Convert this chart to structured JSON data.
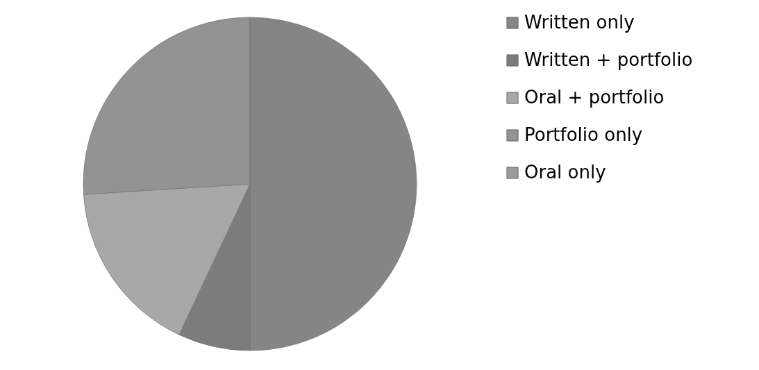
{
  "chart_data": {
    "type": "pie",
    "categories": [
      "Written only",
      "Written + portfolio",
      "Oral + portfolio",
      "Portfolio only",
      "Oral only"
    ],
    "values": [
      50,
      7,
      17,
      26,
      0
    ],
    "colors": [
      "#858585",
      "#7c7c7c",
      "#a8a8a8",
      "#939393",
      "#9c9c9c"
    ],
    "legend": "right"
  }
}
